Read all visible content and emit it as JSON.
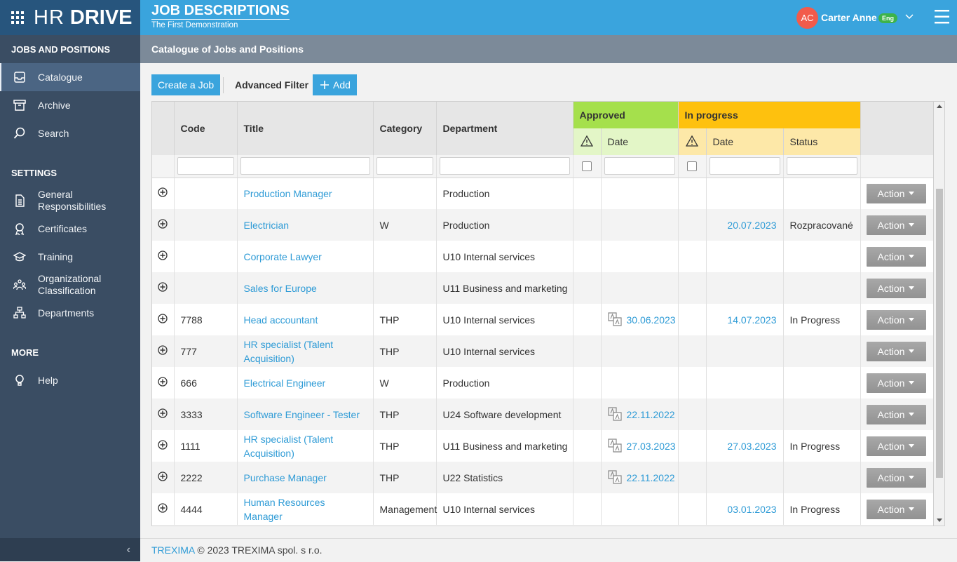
{
  "header": {
    "logo_light": "HR",
    "logo_bold": "DRIVE",
    "title": "JOB DESCRIPTIONS",
    "subtitle": "The First Demonstration",
    "user": {
      "initials": "AC",
      "name": "Carter Anne",
      "language": "Eng"
    }
  },
  "sidebar": {
    "sections": [
      {
        "title": "JOBS AND POSITIONS",
        "items": [
          "Catalogue",
          "Archive",
          "Search"
        ]
      },
      {
        "title": "SETTINGS",
        "items": [
          "General Responsibilities",
          "Certificates",
          "Training",
          "Organizational Classification",
          "Departments"
        ]
      },
      {
        "title": "MORE",
        "items": [
          "Help"
        ]
      }
    ]
  },
  "page_title": "Catalogue of Jobs and Positions",
  "toolbar": {
    "create": "Create a Job",
    "advanced_filter": "Advanced Filter",
    "add": "Add"
  },
  "table": {
    "columns": {
      "code": "Code",
      "title": "Title",
      "category": "Category",
      "department": "Department"
    },
    "groups": {
      "approved": "Approved",
      "in_progress": "In progress"
    },
    "sub": {
      "approved_date": "Date",
      "progress_date": "Date",
      "status": "Status"
    },
    "action": "Action",
    "rows": [
      {
        "title": "Production Manager",
        "department": "Production"
      },
      {
        "title": "Electrician",
        "category": "W",
        "department": "Production",
        "progress_date": "20.07.2023",
        "status": "Rozpracované"
      },
      {
        "title": "Corporate Lawyer",
        "department": "U10 Internal services"
      },
      {
        "title": "Sales for Europe",
        "department": "U11 Business and marketing"
      },
      {
        "code": "7788",
        "title": "Head accountant",
        "category": "THP",
        "department": "U10 Internal services",
        "approved_date": "30.06.2023",
        "progress_date": "14.07.2023",
        "status": "In Progress"
      },
      {
        "code": "777",
        "title": "HR specialist (Talent Acquisition)",
        "category": "THP",
        "department": "U10 Internal services"
      },
      {
        "code": "666",
        "title": "Electrical Engineer",
        "category": "W",
        "department": "Production"
      },
      {
        "code": "3333",
        "title": "Software Engineer - Tester",
        "category": "THP",
        "department": "U24 Software development",
        "approved_date": "22.11.2022"
      },
      {
        "code": "1111",
        "title": "HR specialist (Talent Acquisition)",
        "category": "THP",
        "department": "U11 Business and marketing",
        "approved_date": "27.03.2023",
        "progress_date": "27.03.2023",
        "status": "In Progress"
      },
      {
        "code": "2222",
        "title": "Purchase Manager",
        "category": "THP",
        "department": "U22 Statistics",
        "approved_date": "22.11.2022"
      },
      {
        "code": "4444",
        "title": "Human Resources Manager",
        "category": "Management",
        "department": "U10 Internal services",
        "progress_date": "03.01.2023",
        "status": "In Progress"
      }
    ]
  },
  "footer": {
    "company": "TREXIMA",
    "text": "© 2023 TREXIMA spol. s r.o."
  }
}
